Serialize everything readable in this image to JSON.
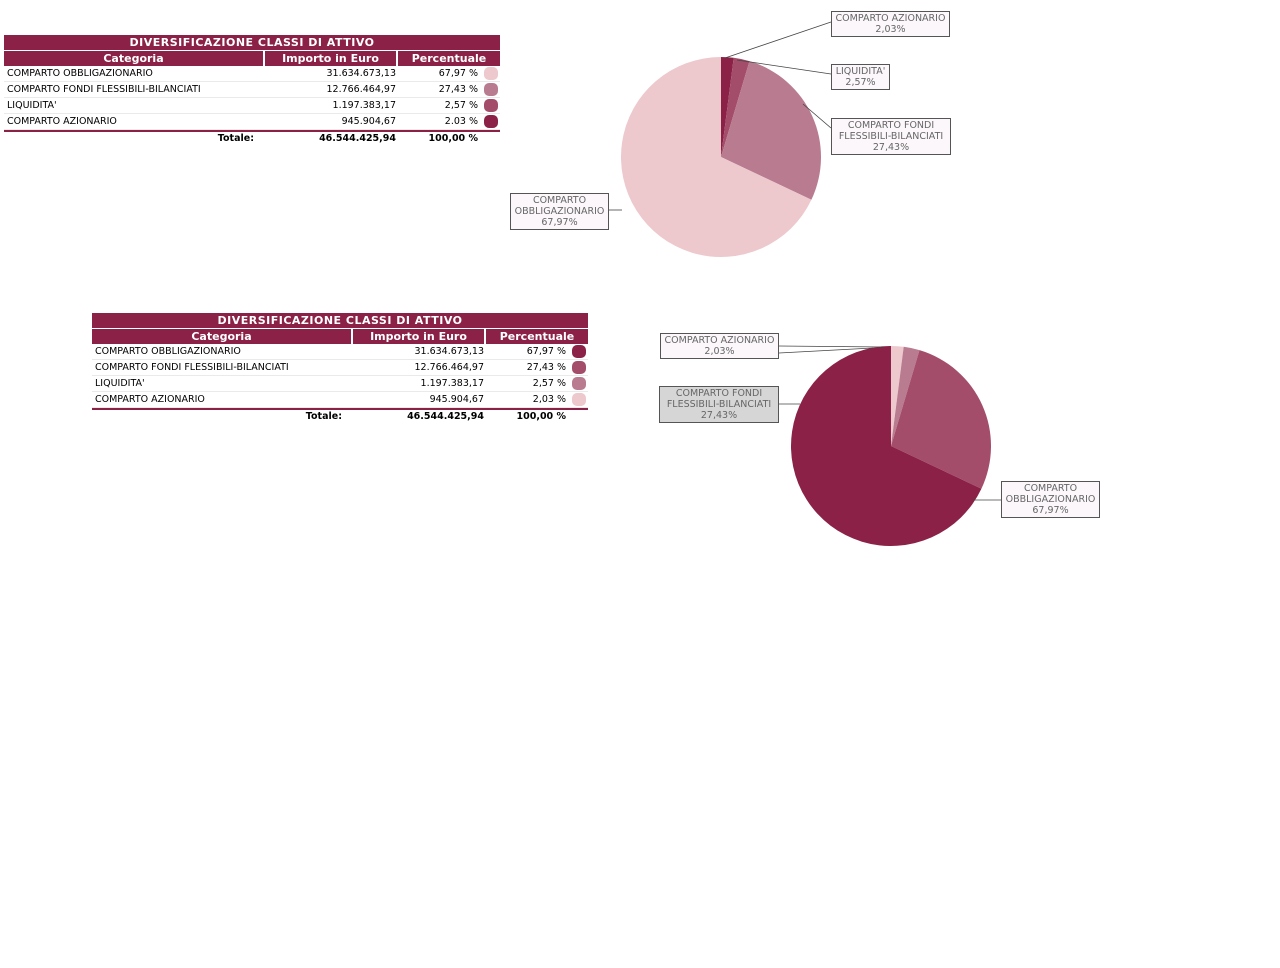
{
  "tables": [
    {
      "title": "DIVERSIFICAZIONE CLASSI DI ATTIVO",
      "headers": {
        "category": "Categoria",
        "amount": "Importo in Euro",
        "percent": "Percentuale"
      },
      "rows": [
        {
          "category": "COMPARTO OBBLIGAZIONARIO",
          "amount": "31.634.673,13",
          "percent": "67,97 %",
          "color": "#edc8cc"
        },
        {
          "category": "COMPARTO FONDI FLESSIBILI-BILANCIATI",
          "amount": "12.766.464,97",
          "percent": "27,43 %",
          "color": "#b97b90"
        },
        {
          "category": "LIQUIDITA'",
          "amount": "1.197.383,17",
          "percent": "2,57 %",
          "color": "#a34d6a"
        },
        {
          "category": "COMPARTO AZIONARIO",
          "amount": "945.904,67",
          "percent": "2.03 %",
          "color": "#8b2146"
        }
      ],
      "total": {
        "label": "Totale:",
        "amount": "46.544.425,94",
        "percent": "100,00 %"
      }
    },
    {
      "title": "DIVERSIFICAZIONE CLASSI DI ATTIVO",
      "headers": {
        "category": "Categoria",
        "amount": "Importo in Euro",
        "percent": "Percentuale"
      },
      "rows": [
        {
          "category": "COMPARTO OBBLIGAZIONARIO",
          "amount": "31.634.673,13",
          "percent": "67,97 %",
          "color": "#8b2146"
        },
        {
          "category": "COMPARTO FONDI FLESSIBILI-BILANCIATI",
          "amount": "12.766.464,97",
          "percent": "27,43 %",
          "color": "#a34d6a"
        },
        {
          "category": "LIQUIDITA'",
          "amount": "1.197.383,17",
          "percent": "2,57 %",
          "color": "#b97b90"
        },
        {
          "category": "COMPARTO AZIONARIO",
          "amount": "945.904,67",
          "percent": "2,03 %",
          "color": "#edc8cc"
        }
      ],
      "total": {
        "label": "Totale:",
        "amount": "46.544.425,94",
        "percent": "100,00 %"
      }
    }
  ],
  "chart_data": [
    {
      "type": "pie",
      "title": "",
      "slices": [
        {
          "label": "COMPARTO AZIONARIO",
          "value": 2.03,
          "display": "2,03%",
          "color": "#8b2146"
        },
        {
          "label": "LIQUIDITA'",
          "value": 2.57,
          "display": "2,57%",
          "color": "#a34d6a"
        },
        {
          "label": "COMPARTO FONDI FLESSIBILI-BILANCIATI",
          "value": 27.43,
          "display": "27,43%",
          "color": "#b97b90"
        },
        {
          "label": "COMPARTO OBBLIGAZIONARIO",
          "value": 67.97,
          "display": "67,97%",
          "color": "#edc8cc"
        }
      ]
    },
    {
      "type": "pie",
      "title": "",
      "slices": [
        {
          "label": "COMPARTO AZIONARIO",
          "value": 2.03,
          "display": "2,03%",
          "color": "#edc8cc"
        },
        {
          "label": "LIQUIDITA'",
          "value": 2.57,
          "display": "",
          "color": "#b97b90"
        },
        {
          "label": "COMPARTO FONDI FLESSIBILI-BILANCIATI",
          "value": 27.43,
          "display": "27,43%",
          "color": "#a34d6a"
        },
        {
          "label": "COMPARTO OBBLIGAZIONARIO",
          "value": 67.97,
          "display": "67,97%",
          "color": "#8b2146"
        }
      ]
    }
  ]
}
